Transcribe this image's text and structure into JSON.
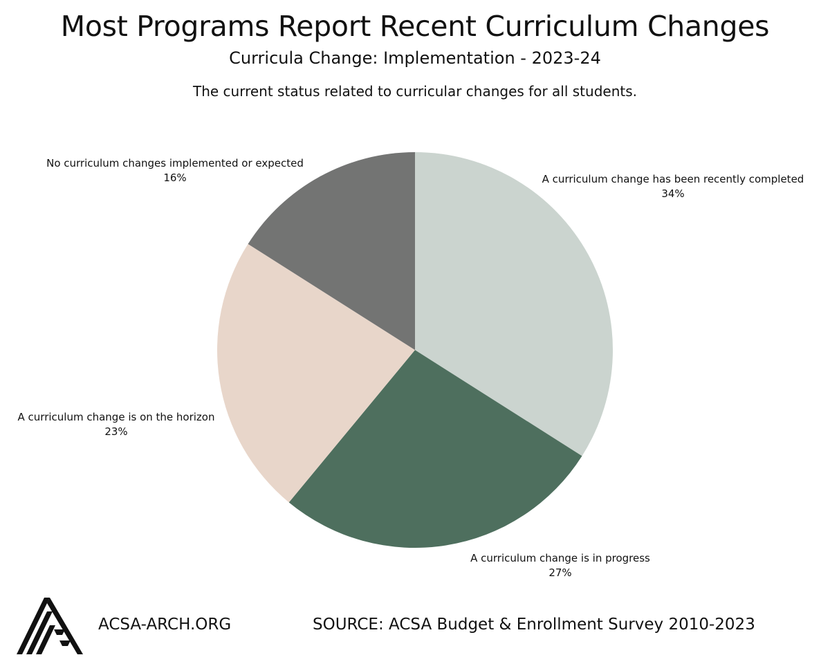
{
  "chart_data": {
    "type": "pie",
    "title": "Most Programs Report Recent Curriculum Changes",
    "subtitle": "Curricula Change: Implementation - 2023-24",
    "description": "The current status related to curricular changes for all students.",
    "slices": [
      {
        "label": "A curriculum change has been recently completed",
        "value": 34,
        "value_label": "34%",
        "color": "#cbd4cf"
      },
      {
        "label": "A curriculum change is in progress",
        "value": 27,
        "value_label": "27%",
        "color": "#4e6f5e"
      },
      {
        "label": "A curriculum change is on the horizon",
        "value": 23,
        "value_label": "23%",
        "color": "#e8d6ca"
      },
      {
        "label": "No curriculum changes implemented or expected",
        "value": 16,
        "value_label": "16%",
        "color": "#737473"
      }
    ],
    "start_angle": "top",
    "direction": "clockwise"
  },
  "footer": {
    "website": "ACSA-ARCH.ORG",
    "source": "SOURCE: ACSA Budget & Enrollment Survey 2010-2023",
    "logo_icon": "acsa-triangle-logo-icon"
  }
}
